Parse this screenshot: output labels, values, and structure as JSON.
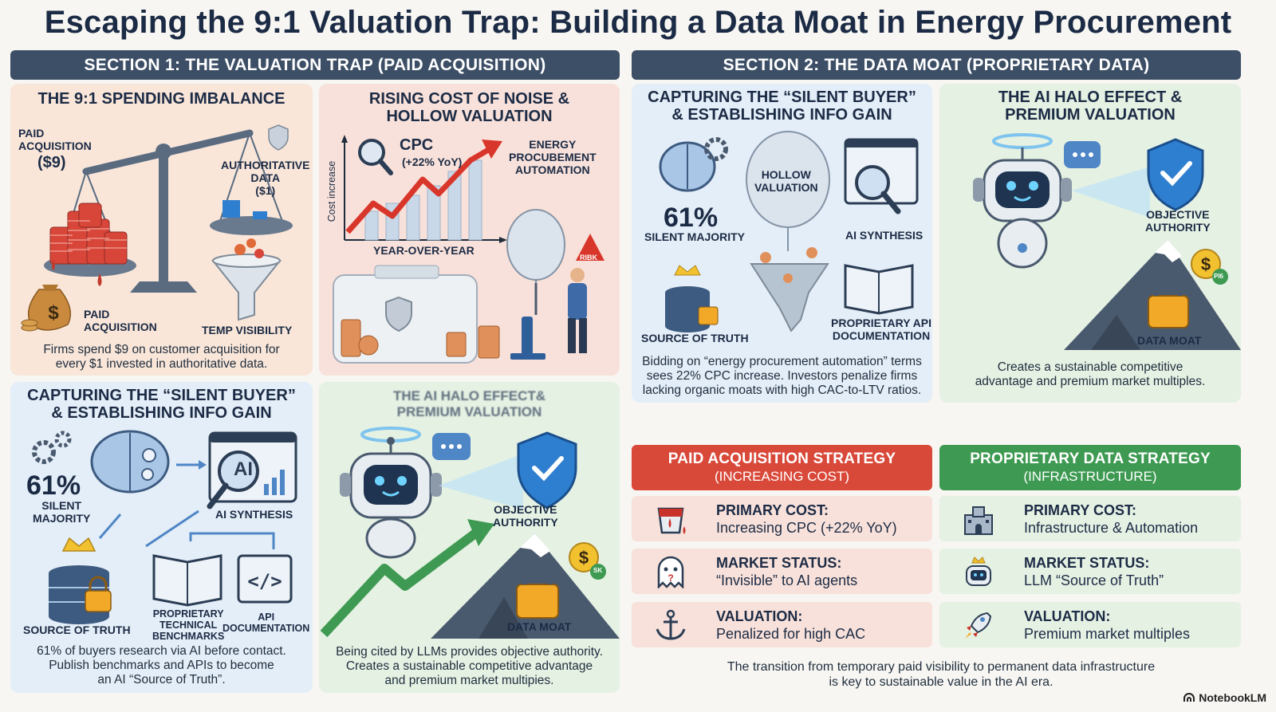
{
  "title": "Escaping the 9:1 Valuation Trap: Building a Data Moat in Energy Procurement",
  "section1": "SECTION 1: THE VALUATION TRAP (PAID ACQUISITION)",
  "section2": "SECTION 2: THE DATA MOAT (PROPRIETARY DATA)",
  "p1": {
    "title": "THE 9:1 SPENDING IMBALANCE",
    "paid_top_1": "PAID",
    "paid_top_2": "ACQUISITION",
    "paid_amount": "($9)",
    "auth_1": "AUTHORITATIVE",
    "auth_2": "DATA",
    "auth_amount": "($1)",
    "paid_bottom_1": "PAID",
    "paid_bottom_2": "ACQUISITION",
    "temp_visibility": "TEMP VISIBILITY",
    "caption_1": "Firms spend $9 on customer acquisition for",
    "caption_2": "every $1 invested in authoritative data."
  },
  "p2": {
    "title_1": "RISING COST OF NOISE &",
    "title_2": "HOLLOW VALUATION",
    "cpc": "CPC",
    "cpc_sub": "(+22% YoY)",
    "energy_1": "ENERGY",
    "energy_2": "PROCUBEMENT",
    "energy_3": "AUTOMATION",
    "yaxis": "Cost increase",
    "xaxis": "YEAR-OVER-YEAR",
    "risk": "RIBK"
  },
  "p3": {
    "title_1": "CAPTURING THE “SILENT BUYER”",
    "title_2": "& ESTABLISHING INFO GAIN",
    "pct": "61%",
    "silent_1": "SILENT",
    "silent_2": "MAJORITY",
    "ai": "AI",
    "ai_synthesis": "AI SYNTHESIS",
    "source": "SOURCE OF TRUTH",
    "bench_1": "PROPRIETARY",
    "bench_2": "TECHNICAL",
    "bench_3": "BENCHMARKS",
    "api_1": "API",
    "api_2": "DOCUMENTATION",
    "caption_1": "61% of buyers research via AI before contact.",
    "caption_2": "Publish benchmarks and APIs to become",
    "caption_3": "an AI “Source of Truth”."
  },
  "p4": {
    "title_1": "THE AI HALO EFFECT&",
    "title_2": "PREMIUM VALUATION",
    "objective_1": "OBJECTIVE",
    "objective_2": "AUTHORITY",
    "moat": "DATA MOAT",
    "sk": "SK",
    "caption_1": "Being cited by LLMs provides objective authority.",
    "caption_2": "Creates a sustainable competitive advantage",
    "caption_3": "and premium market multipies."
  },
  "p5": {
    "title_1": "CAPTURING THE “SILENT BUYER”",
    "title_2": "& ESTABLISHING INFO GAIN",
    "pct": "61%",
    "silent": "SILENT MAJORITY",
    "hollow_1": "HOLLOW",
    "hollow_2": "VALUATION",
    "ai_synthesis": "AI SYNTHESIS",
    "source": "SOURCE OF TRUTH",
    "api_1": "PROPRIETARY API",
    "api_2": "DOCUMENTATION",
    "caption_1": "Bidding on “energy procurement automation” terms",
    "caption_2": "sees 22% CPC increase. Investors penalize firms",
    "caption_3": "lacking organic moats with high CAC-to-LTV ratios."
  },
  "p6": {
    "title_1": "THE AI HALO EFFECT &",
    "title_2": "PREMIUM VALUATION",
    "objective_1": "OBJECTIVE",
    "objective_2": "AUTHORITY",
    "moat": "DATA MOAT",
    "pid": "PI6",
    "caption_1": "Creates a sustainable competitive",
    "caption_2": "advantage and premium market multiples."
  },
  "paid_strategy": {
    "head_1": "PAID ACQUISITION STRATEGY",
    "head_2": "(INCREASING COST)",
    "color": "#d9493a",
    "rows": [
      {
        "key": "PRIMARY COST:",
        "value": "Increasing CPC (+22% YoY)",
        "icon": "paint-bucket-icon"
      },
      {
        "key": "MARKET STATUS:",
        "value": "“Invisible” to AI agents",
        "icon": "ghost-icon"
      },
      {
        "key": "VALUATION:",
        "value": "Penalized for high CAC",
        "icon": "anchor-icon"
      }
    ]
  },
  "data_strategy": {
    "head_1": "PROPRIETARY DATA STRATEGY",
    "head_2": "(INFRASTRUCTURE)",
    "color": "#3e9a52",
    "rows": [
      {
        "key": "PRIMARY COST:",
        "value": "Infrastructure & Automation",
        "icon": "castle-icon"
      },
      {
        "key": "MARKET STATUS:",
        "value": "LLM “Source of Truth”",
        "icon": "crowned-robot-icon"
      },
      {
        "key": "VALUATION:",
        "value": "Premium market multiples",
        "icon": "rocket-icon"
      }
    ]
  },
  "footer_1": "The transition from temporary paid visibility to permanent data infrastructure",
  "footer_2": "is key to sustainable value in the AI era.",
  "brand": "NotebookLM"
}
